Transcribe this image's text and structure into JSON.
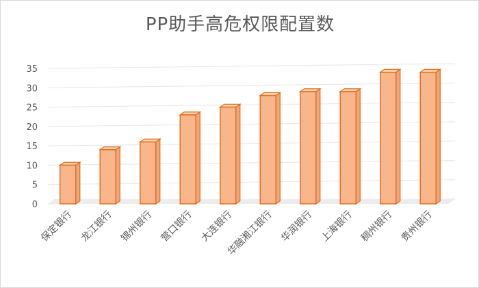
{
  "chart_data": {
    "type": "bar",
    "title": "PP助手高危权限配置数",
    "categories": [
      "保定银行",
      "龙江银行",
      "锦州银行",
      "营口银行",
      "大连银行",
      "华融湘江银行",
      "华润银行",
      "上海银行",
      "稠州银行",
      "贵州银行"
    ],
    "values": [
      10,
      14,
      16,
      23,
      25,
      28,
      29,
      29,
      34,
      34
    ],
    "ylim": [
      0,
      35
    ],
    "yticks": [
      0,
      5,
      10,
      15,
      20,
      25,
      30,
      35
    ],
    "grid": true,
    "legend": "none",
    "style": "3d-column",
    "colors": {
      "bar_fill": "#F8B68A",
      "bar_edge": "#E07020",
      "grid": "#e6e6e6",
      "floor": "#ececec"
    }
  }
}
